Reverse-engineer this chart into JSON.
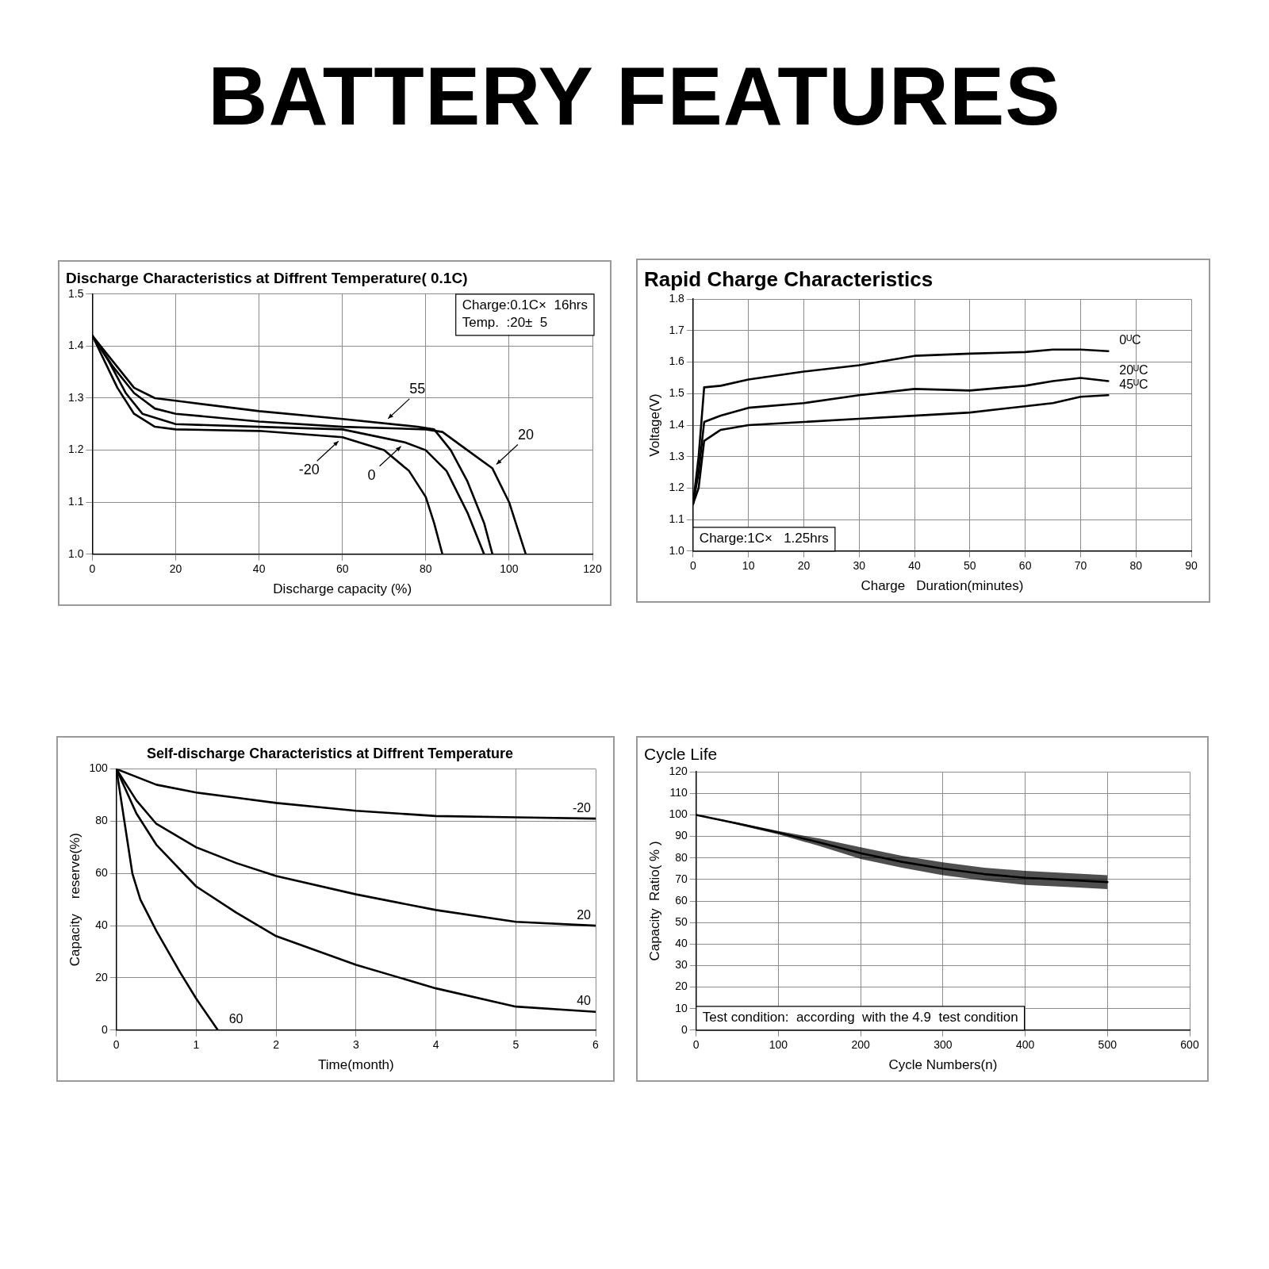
{
  "chart_data": [
    {
      "type": "other",
      "title": "BATTERY FEATURES"
    },
    {
      "type": "line",
      "title": "Discharge Characteristics at Diffrent Temperature( 0.1C)",
      "xlabel": "Discharge capacity (%)",
      "xlim": [
        0,
        120
      ],
      "xticks": [
        0,
        20,
        40,
        60,
        80,
        100,
        120
      ],
      "ylim": [
        1.0,
        1.5
      ],
      "yticks": [
        {
          "value": 1,
          "label": "1.0"
        },
        1.1,
        1.2,
        1.3,
        1.4,
        1.5
      ],
      "grid": true,
      "marker": "none",
      "line_style": "solid",
      "series": [
        {
          "color": "#000000",
          "x": [
            0,
            3,
            6,
            10,
            15,
            20,
            40,
            60,
            70,
            76,
            80,
            82,
            84
          ],
          "values": [
            1.42,
            1.37,
            1.32,
            1.27,
            1.245,
            1.24,
            1.237,
            1.225,
            1.2,
            1.16,
            1.11,
            1.06,
            1.0
          ]
        },
        {
          "color": "#000000",
          "x": [
            0,
            4,
            8,
            12,
            20,
            40,
            60,
            75,
            80,
            85,
            90,
            94
          ],
          "values": [
            1.42,
            1.37,
            1.31,
            1.27,
            1.25,
            1.245,
            1.24,
            1.215,
            1.2,
            1.16,
            1.08,
            1.0
          ]
        },
        {
          "color": "#000000",
          "x": [
            0,
            5,
            10,
            15,
            20,
            40,
            60,
            78,
            82,
            86,
            90,
            94,
            96
          ],
          "values": [
            1.42,
            1.37,
            1.32,
            1.3,
            1.295,
            1.275,
            1.26,
            1.245,
            1.24,
            1.2,
            1.14,
            1.06,
            1.0
          ]
        },
        {
          "color": "#000000",
          "x": [
            0,
            5,
            10,
            15,
            20,
            40,
            60,
            80,
            84,
            90,
            96,
            100,
            104
          ],
          "values": [
            1.42,
            1.36,
            1.31,
            1.28,
            1.27,
            1.255,
            1.245,
            1.24,
            1.235,
            1.2,
            1.165,
            1.1,
            1.0
          ]
        }
      ],
      "annotations": [
        "Charge:0.1C×  16hrs",
        "Temp.  :20±  5",
        {
          "text": "-20",
          "x": 60,
          "y": 1.225
        },
        {
          "text": "0",
          "x": 75,
          "y": 1.215
        },
        {
          "text": "55",
          "x": 70,
          "y": 1.253
        },
        {
          "text": "20",
          "x": 96,
          "y": 1.165
        }
      ]
    },
    {
      "type": "line",
      "title": "Rapid Charge Characteristics",
      "xlabel": "Charge   Duration(minutes)",
      "ylabel": "Voltage(V)",
      "xlim": [
        0,
        90
      ],
      "xticks": [
        0,
        10,
        20,
        30,
        40,
        50,
        60,
        70,
        80,
        90
      ],
      "ylim": [
        1.0,
        1.8
      ],
      "yticks": [
        {
          "value": 1,
          "label": "1.0"
        },
        1.1,
        1.2,
        1.3,
        1.4,
        1.5,
        1.6,
        1.7,
        1.8
      ],
      "grid": true,
      "marker": "none",
      "line_style": "solid",
      "x": [
        0,
        1,
        2,
        5,
        10,
        20,
        30,
        40,
        50,
        60,
        65,
        70,
        75
      ],
      "series": [
        {
          "name": "0ᵁC",
          "color": "#000000",
          "values": [
            1.15,
            1.3,
            1.52,
            1.525,
            1.545,
            1.57,
            1.59,
            1.62,
            1.627,
            1.632,
            1.64,
            1.64,
            1.635
          ]
        },
        {
          "name": "20ᵁC",
          "color": "#000000",
          "values": [
            1.15,
            1.25,
            1.41,
            1.43,
            1.455,
            1.47,
            1.495,
            1.515,
            1.51,
            1.525,
            1.54,
            1.55,
            1.54
          ]
        },
        {
          "name": "45ᵁC",
          "color": "#000000",
          "values": [
            1.15,
            1.2,
            1.35,
            1.385,
            1.4,
            1.41,
            1.42,
            1.43,
            1.44,
            1.46,
            1.47,
            1.49,
            1.495
          ]
        }
      ],
      "annotations": [
        "Charge:1C×   1.25hrs"
      ]
    },
    {
      "type": "line",
      "title": "Self-discharge Characteristics at Diffrent Temperature",
      "xlabel": "Time(month)",
      "ylabel": "Capacity    reserve(%)",
      "xlim": [
        0,
        6
      ],
      "xticks": [
        0,
        1,
        2,
        3,
        4,
        5,
        6
      ],
      "ylim": [
        0,
        100
      ],
      "yticks": [
        0,
        20,
        40,
        60,
        80,
        100
      ],
      "grid": true,
      "marker": "none",
      "line_style": "solid",
      "series": [
        {
          "name": "-20",
          "color": "#000000",
          "x": [
            0,
            0.5,
            1,
            1.5,
            2,
            3,
            4,
            5,
            6
          ],
          "values": [
            100,
            94,
            91,
            89,
            87,
            84,
            82,
            81.5,
            81
          ]
        },
        {
          "name": "20",
          "color": "#000000",
          "x": [
            0,
            0.25,
            0.5,
            1,
            1.5,
            2,
            3,
            4,
            5,
            6
          ],
          "values": [
            100,
            88,
            79,
            70,
            64,
            59,
            52,
            46,
            41.5,
            40
          ]
        },
        {
          "name": "40",
          "color": "#000000",
          "x": [
            0,
            0.25,
            0.5,
            1,
            1.5,
            2,
            3,
            4,
            5,
            6
          ],
          "values": [
            100,
            83,
            71,
            55,
            45,
            36,
            25,
            16,
            9,
            7
          ]
        },
        {
          "name": "60",
          "color": "#000000",
          "x": [
            0,
            0.1,
            0.2,
            0.3,
            0.5,
            0.8,
            1,
            1.27
          ],
          "values": [
            100,
            80,
            60,
            50,
            38,
            22,
            12,
            0
          ]
        }
      ]
    },
    {
      "type": "line",
      "title": "Cycle Life",
      "xlabel": "Cycle Numbers(n)",
      "ylabel": "Capacity  Ratio( % )",
      "xlim": [
        0,
        600
      ],
      "xticks": [
        0,
        100,
        200,
        300,
        400,
        500,
        600
      ],
      "ylim": [
        0,
        120
      ],
      "yticks": [
        0,
        10,
        20,
        30,
        40,
        50,
        60,
        70,
        80,
        90,
        100,
        110,
        120
      ],
      "grid": true,
      "marker": "none",
      "line_style": "solid",
      "x": [
        0,
        50,
        100,
        150,
        200,
        250,
        300,
        350,
        400,
        450,
        500
      ],
      "series": [
        {
          "color": "#000000",
          "values": [
            100,
            96,
            91.8,
            87.2,
            82.2,
            78.2,
            75,
            72.5,
            70.8,
            69.8,
            68.8
          ],
          "lower": [
            100,
            95.5,
            91,
            85.5,
            79.5,
            75.5,
            72,
            69.5,
            67.5,
            66.5,
            65.5
          ],
          "upper": [
            100,
            96.5,
            92.5,
            89,
            85,
            81,
            78,
            75.5,
            74,
            73,
            72
          ]
        }
      ],
      "annotations": [
        "Test condition:  according  with the 4.9  test condition"
      ]
    }
  ]
}
